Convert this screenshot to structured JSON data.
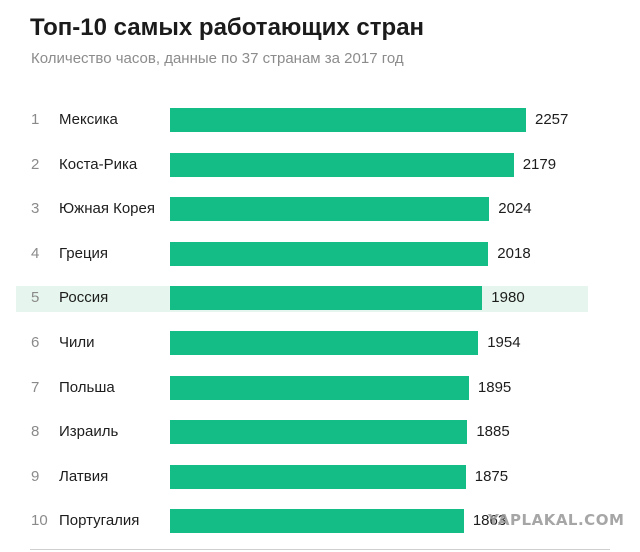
{
  "title": "Топ-10 самых работающих стран",
  "subtitle": "Количество часов, данные по 37 странам за 2017 год",
  "watermark": "YAPLAKAL.COM",
  "colors": {
    "bar": "#14bd85",
    "highlight_row": "#e6f6ee"
  },
  "chart_data": {
    "type": "bar",
    "orientation": "horizontal",
    "title": "Топ-10 самых работающих стран",
    "subtitle": "Количество часов, данные по 37 странам за 2017 год",
    "ranks": [
      "1",
      "2",
      "3",
      "4",
      "5",
      "6",
      "7",
      "8",
      "9",
      "10"
    ],
    "categories": [
      "Мексика",
      "Коста-Рика",
      "Южная Корея",
      "Греция",
      "Россия",
      "Чили",
      "Польша",
      "Израиль",
      "Латвия",
      "Португалия"
    ],
    "values": [
      2257,
      2179,
      2024,
      2018,
      1980,
      1954,
      1895,
      1885,
      1875,
      1863
    ],
    "highlighted_category": "Россия",
    "grid": false,
    "legend": "none"
  }
}
